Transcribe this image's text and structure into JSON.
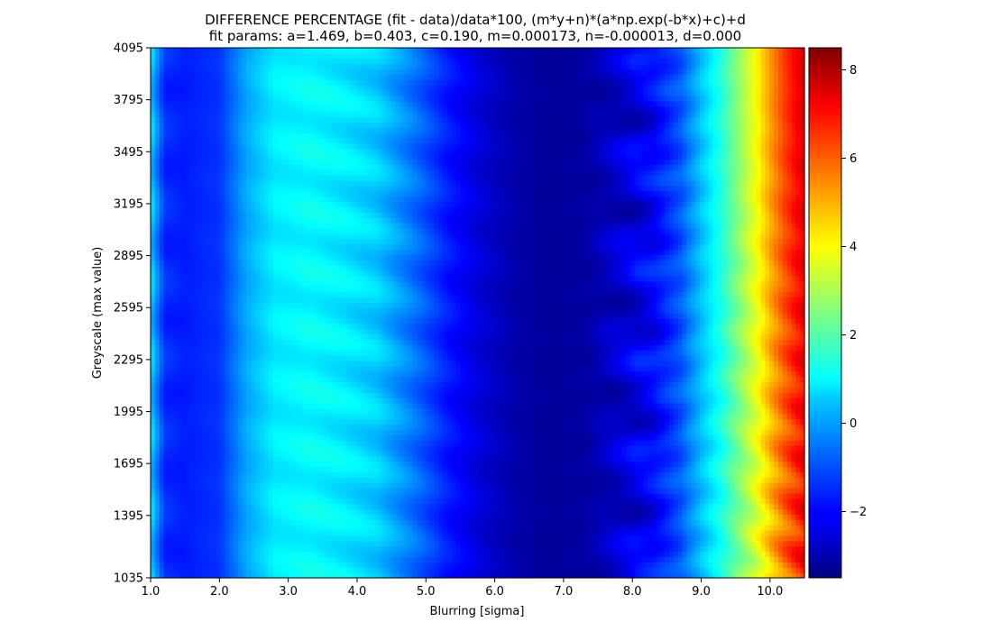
{
  "chart_data": {
    "type": "heatmap",
    "title": "DIFFERENCE PERCENTAGE (fit - data)/data*100, (m*y+n)*(a*np.exp(-b*x)+c)+d",
    "subtitle": "fit params: a=1.469, b=0.403, c=0.190, m=0.000173, n=-0.000013, d=0.000",
    "xlabel": "Blurring [sigma]",
    "ylabel": "Greyscale (max value)",
    "xlim": [
      1.0,
      10.5
    ],
    "ylim": [
      1035,
      4095
    ],
    "x_ticks": [
      "1.0",
      "2.0",
      "3.0",
      "4.0",
      "5.0",
      "6.0",
      "7.0",
      "8.0",
      "9.0",
      "10.0"
    ],
    "y_ticks": [
      "1035",
      "1395",
      "1695",
      "1995",
      "2295",
      "2595",
      "2895",
      "3195",
      "3495",
      "3795",
      "4095"
    ],
    "x_tick_values": [
      1.0,
      2.0,
      3.0,
      4.0,
      5.0,
      6.0,
      7.0,
      8.0,
      9.0,
      10.0
    ],
    "y_tick_values": [
      1035,
      1395,
      1695,
      1995,
      2295,
      2595,
      2895,
      3195,
      3495,
      3795,
      4095
    ],
    "colormap": "jet",
    "colorbar": {
      "range": [
        -3.5,
        8.5
      ],
      "ticks": [
        "−2",
        "0",
        "2",
        "4",
        "6",
        "8"
      ],
      "tick_values": [
        -2,
        0,
        2,
        4,
        6,
        8
      ]
    },
    "grid": false,
    "profile": {
      "sigma": [
        1.0,
        1.2,
        1.5,
        2.0,
        2.4,
        2.8,
        3.3,
        3.8,
        4.3,
        4.8,
        5.3,
        5.8,
        6.3,
        6.8,
        7.3,
        7.8,
        8.3,
        8.7,
        9.0,
        9.3,
        9.6,
        9.8,
        10.0,
        10.2,
        10.4,
        10.5
      ],
      "diff_percent": [
        0.5,
        -1.5,
        -1.7,
        -1.4,
        0.0,
        0.8,
        1.0,
        0.8,
        0.4,
        -0.6,
        -1.7,
        -2.5,
        -3.0,
        -3.2,
        -3.1,
        -2.6,
        -2.0,
        -1.0,
        0.3,
        1.5,
        3.0,
        4.0,
        5.2,
        6.3,
        7.2,
        7.6
      ]
    }
  }
}
